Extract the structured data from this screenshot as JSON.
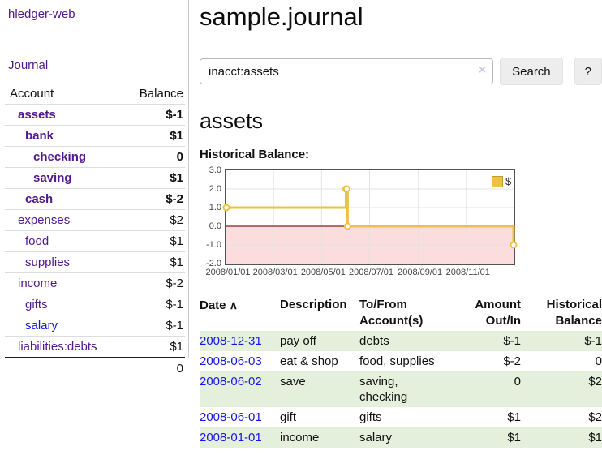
{
  "app": {
    "title": "hledger-web"
  },
  "theme": {
    "link_purple": "#52188f",
    "link_blue": "#1717e0",
    "negative_red": "#8c1717",
    "muted_negative_red": "#b36a6a",
    "row_stripe_green": "#e4efdc",
    "chart_line_gold": "#edc240",
    "chart_negative_fill_pink": "#fbdddd",
    "chart_zero_line_red": "#8b1a1a",
    "chart_border_gray": "#545454"
  },
  "icons": {
    "clear": "×",
    "sort_up": "∧"
  },
  "sidebar": {
    "journal_label": "Journal",
    "headers": {
      "account": "Account",
      "balance": "Balance"
    },
    "accounts": [
      {
        "name": "assets",
        "balance": "$-1"
      },
      {
        "name": "bank",
        "balance": "$1"
      },
      {
        "name": "checking",
        "balance": "0"
      },
      {
        "name": "saving",
        "balance": "$1"
      },
      {
        "name": "cash",
        "balance": "$-2"
      },
      {
        "name": "expenses",
        "balance": "$2"
      },
      {
        "name": "food",
        "balance": "$1"
      },
      {
        "name": "supplies",
        "balance": "$1"
      },
      {
        "name": "income",
        "balance": "$-2"
      },
      {
        "name": "gifts",
        "balance": "$-1"
      },
      {
        "name": "salary",
        "balance": "$-1"
      },
      {
        "name": "liabilities:debts",
        "balance": "$1"
      }
    ],
    "total": "0"
  },
  "main": {
    "title": "sample.journal",
    "search": {
      "value": "inacct:assets",
      "button_label": "Search",
      "help_label": "?"
    },
    "account_heading": "assets",
    "chart_heading": "Historical Balance:"
  },
  "register": {
    "headers": {
      "date": "Date",
      "description": "Description",
      "tofrom_line1": "To/From",
      "tofrom_line2": "Account(s)",
      "amount_line1": "Amount",
      "amount_line2": "Out/In",
      "balance_line1": "Historical",
      "balance_line2": "Balance"
    },
    "rows": [
      {
        "date": "2008-12-31",
        "description": "pay off",
        "accounts": "debts",
        "amount": "$-1",
        "balance": "$-1"
      },
      {
        "date": "2008-06-03",
        "description": "eat & shop",
        "accounts": "food, supplies",
        "amount": "$-2",
        "balance": "0"
      },
      {
        "date": "2008-06-02",
        "description": "save",
        "accounts": "saving, checking",
        "amount": "0",
        "balance": "$2"
      },
      {
        "date": "2008-06-01",
        "description": "gift",
        "accounts": "gifts",
        "amount": "$1",
        "balance": "$2"
      },
      {
        "date": "2008-01-01",
        "description": "income",
        "accounts": "salary",
        "amount": "$1",
        "balance": "$1"
      }
    ]
  },
  "chart_data": {
    "type": "line",
    "step": true,
    "title": "Historical Balance:",
    "x_range": [
      "2008-01-01",
      "2008-12-31"
    ],
    "ylim": [
      -2,
      3
    ],
    "grid": true,
    "legend_position": "top-right",
    "legend": [
      {
        "label": "$",
        "color": "#edc240"
      }
    ],
    "series": [
      {
        "name": "$",
        "color": "#edc240",
        "points": [
          [
            "2008-01-01",
            1
          ],
          [
            "2008-06-01",
            2
          ],
          [
            "2008-06-02",
            2
          ],
          [
            "2008-06-03",
            0
          ],
          [
            "2008-12-31",
            -1
          ]
        ]
      }
    ],
    "yticks": [
      {
        "label": "3.0",
        "value": 3
      },
      {
        "label": "2.0",
        "value": 2
      },
      {
        "label": "1.0",
        "value": 1
      },
      {
        "label": "0.0",
        "value": 0
      },
      {
        "label": "-1.0",
        "value": -1
      },
      {
        "label": "-2.0",
        "value": -2
      }
    ],
    "xticks": [
      {
        "label": "2008/01/01",
        "date": "2008-01-01"
      },
      {
        "label": "2008/03/01",
        "date": "2008-03-01"
      },
      {
        "label": "2008/05/01",
        "date": "2008-05-01"
      },
      {
        "label": "2008/07/01",
        "date": "2008-07-01"
      },
      {
        "label": "2008/09/01",
        "date": "2008-09-01"
      },
      {
        "label": "2008/11/01",
        "date": "2008-11-01"
      }
    ],
    "negative_region_fill": "#fbdddd",
    "zero_line_color": "#8b1a1a"
  }
}
